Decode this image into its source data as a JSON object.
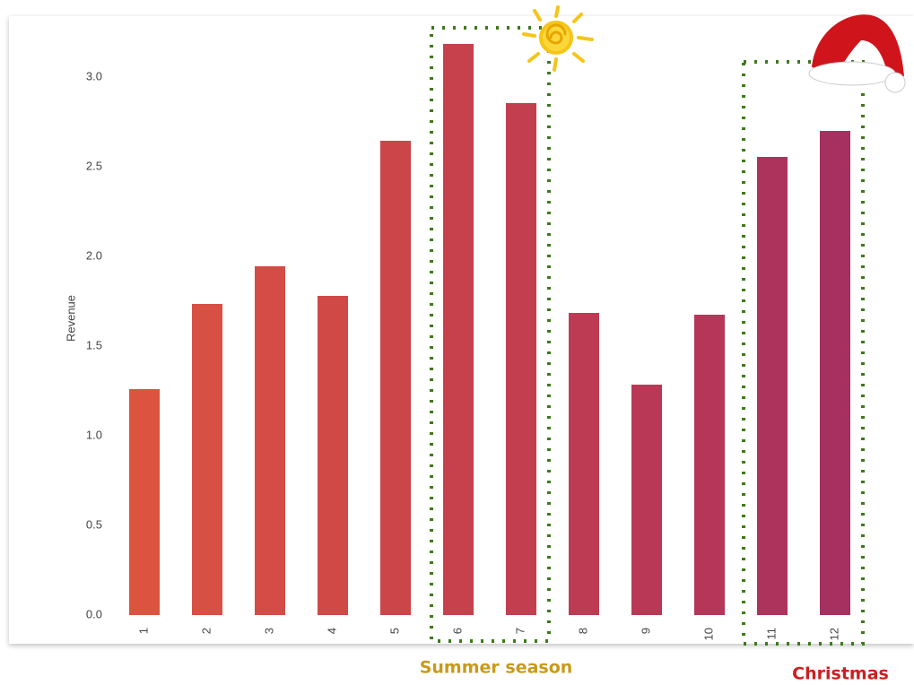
{
  "chart_data": {
    "type": "bar",
    "y_label": "Revenue",
    "categories": [
      "1",
      "2",
      "3",
      "4",
      "5",
      "6",
      "7",
      "8",
      "9",
      "10",
      "11",
      "12"
    ],
    "values": [
      1.26,
      1.735,
      1.945,
      1.78,
      2.645,
      3.185,
      2.855,
      1.685,
      1.285,
      1.675,
      2.555,
      2.7
    ],
    "colors": [
      "#dc5440",
      "#d84f43",
      "#d44c45",
      "#d04947",
      "#cc4549",
      "#c7414d",
      "#c33f50",
      "#bd3b53",
      "#b93856",
      "#b53659",
      "#ae335c",
      "#a63160"
    ],
    "ylim": [
      0,
      3.3
    ],
    "yticks": [
      {
        "value": 0,
        "label": "0.0"
      },
      0.5,
      {
        "value": 1,
        "label": "1.0"
      },
      1.5,
      {
        "value": 2,
        "label": "2.0"
      },
      2.5,
      {
        "value": 3,
        "label": "3.0"
      }
    ],
    "grid": false,
    "annotations": [
      "Summer season",
      "Christmas"
    ]
  }
}
